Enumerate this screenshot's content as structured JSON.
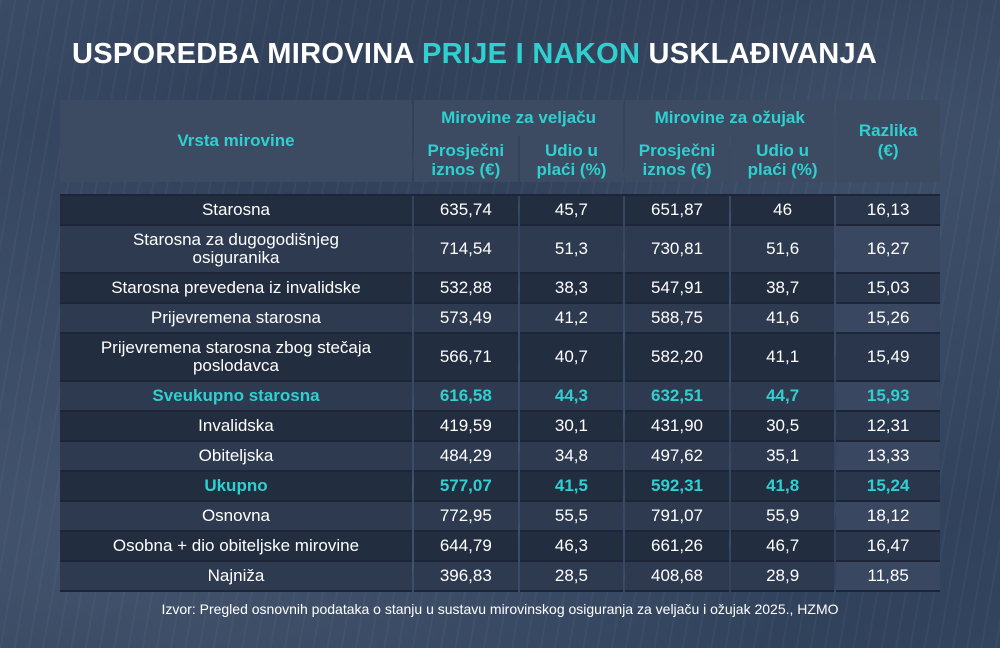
{
  "title": {
    "part1": "USPOREDBA MIROVINA",
    "highlight": "PRIJE I NAKON",
    "part2": "USKLAĐIVANJA"
  },
  "colors": {
    "accent": "#2fd0cf",
    "header_bg": "#3c4a62",
    "row_dark": "#222d40",
    "row_light": "#2e3a50",
    "text": "#ffffff"
  },
  "table": {
    "header": {
      "vrsta": "Vrsta mirovine",
      "group_feb": "Mirovine za veljaču",
      "group_mar": "Mirovine za ožujak",
      "razlika_line1": "Razlika",
      "razlika_line2": "(€)",
      "avg_line1": "Prosječni",
      "avg_line2": "iznos (€)",
      "share_line1": "Udio u",
      "share_line2": "plaći (%)"
    },
    "rows": [
      {
        "name": "Starosna",
        "feb_avg": "635,74",
        "feb_share": "45,7",
        "mar_avg": "651,87",
        "mar_share": "46",
        "diff": "16,13"
      },
      {
        "name_line1": "Starosna za dugogodišnjeg",
        "name_line2": "osiguranika",
        "feb_avg": "714,54",
        "feb_share": "51,3",
        "mar_avg": "730,81",
        "mar_share": "51,6",
        "diff": "16,27"
      },
      {
        "name": "Starosna prevedena iz invalidske",
        "feb_avg": "532,88",
        "feb_share": "38,3",
        "mar_avg": "547,91",
        "mar_share": "38,7",
        "diff": "15,03"
      },
      {
        "name": "Prijevremena starosna",
        "feb_avg": "573,49",
        "feb_share": "41,2",
        "mar_avg": "588,75",
        "mar_share": "41,6",
        "diff": "15,26"
      },
      {
        "name_line1": "Prijevremena starosna zbog stečaja",
        "name_line2": "poslodavca",
        "feb_avg": "566,71",
        "feb_share": "40,7",
        "mar_avg": "582,20",
        "mar_share": "41,1",
        "diff": "15,49"
      },
      {
        "name": "Sveukupno starosna",
        "feb_avg": "616,58",
        "feb_share": "44,3",
        "mar_avg": "632,51",
        "mar_share": "44,7",
        "diff": "15,93"
      },
      {
        "name": "Invalidska",
        "feb_avg": "419,59",
        "feb_share": "30,1",
        "mar_avg": "431,90",
        "mar_share": "30,5",
        "diff": "12,31"
      },
      {
        "name": "Obiteljska",
        "feb_avg": "484,29",
        "feb_share": "34,8",
        "mar_avg": "497,62",
        "mar_share": "35,1",
        "diff": "13,33"
      },
      {
        "name": "Ukupno",
        "feb_avg": "577,07",
        "feb_share": "41,5",
        "mar_avg": "592,31",
        "mar_share": "41,8",
        "diff": "15,24"
      },
      {
        "name": "Osnovna",
        "feb_avg": "772,95",
        "feb_share": "55,5",
        "mar_avg": "791,07",
        "mar_share": "55,9",
        "diff": "18,12"
      },
      {
        "name": "Osobna + dio obiteljske mirovine",
        "feb_avg": "644,79",
        "feb_share": "46,3",
        "mar_avg": "661,26",
        "mar_share": "46,7",
        "diff": "16,47"
      },
      {
        "name": "Najniža",
        "feb_avg": "396,83",
        "feb_share": "28,5",
        "mar_avg": "408,68",
        "mar_share": "28,9",
        "diff": "11,85"
      }
    ]
  },
  "source": "Izvor: Pregled osnovnih podataka o stanju u sustavu mirovinskog osiguranja za veljaču i ožujak 2025., HZMO"
}
